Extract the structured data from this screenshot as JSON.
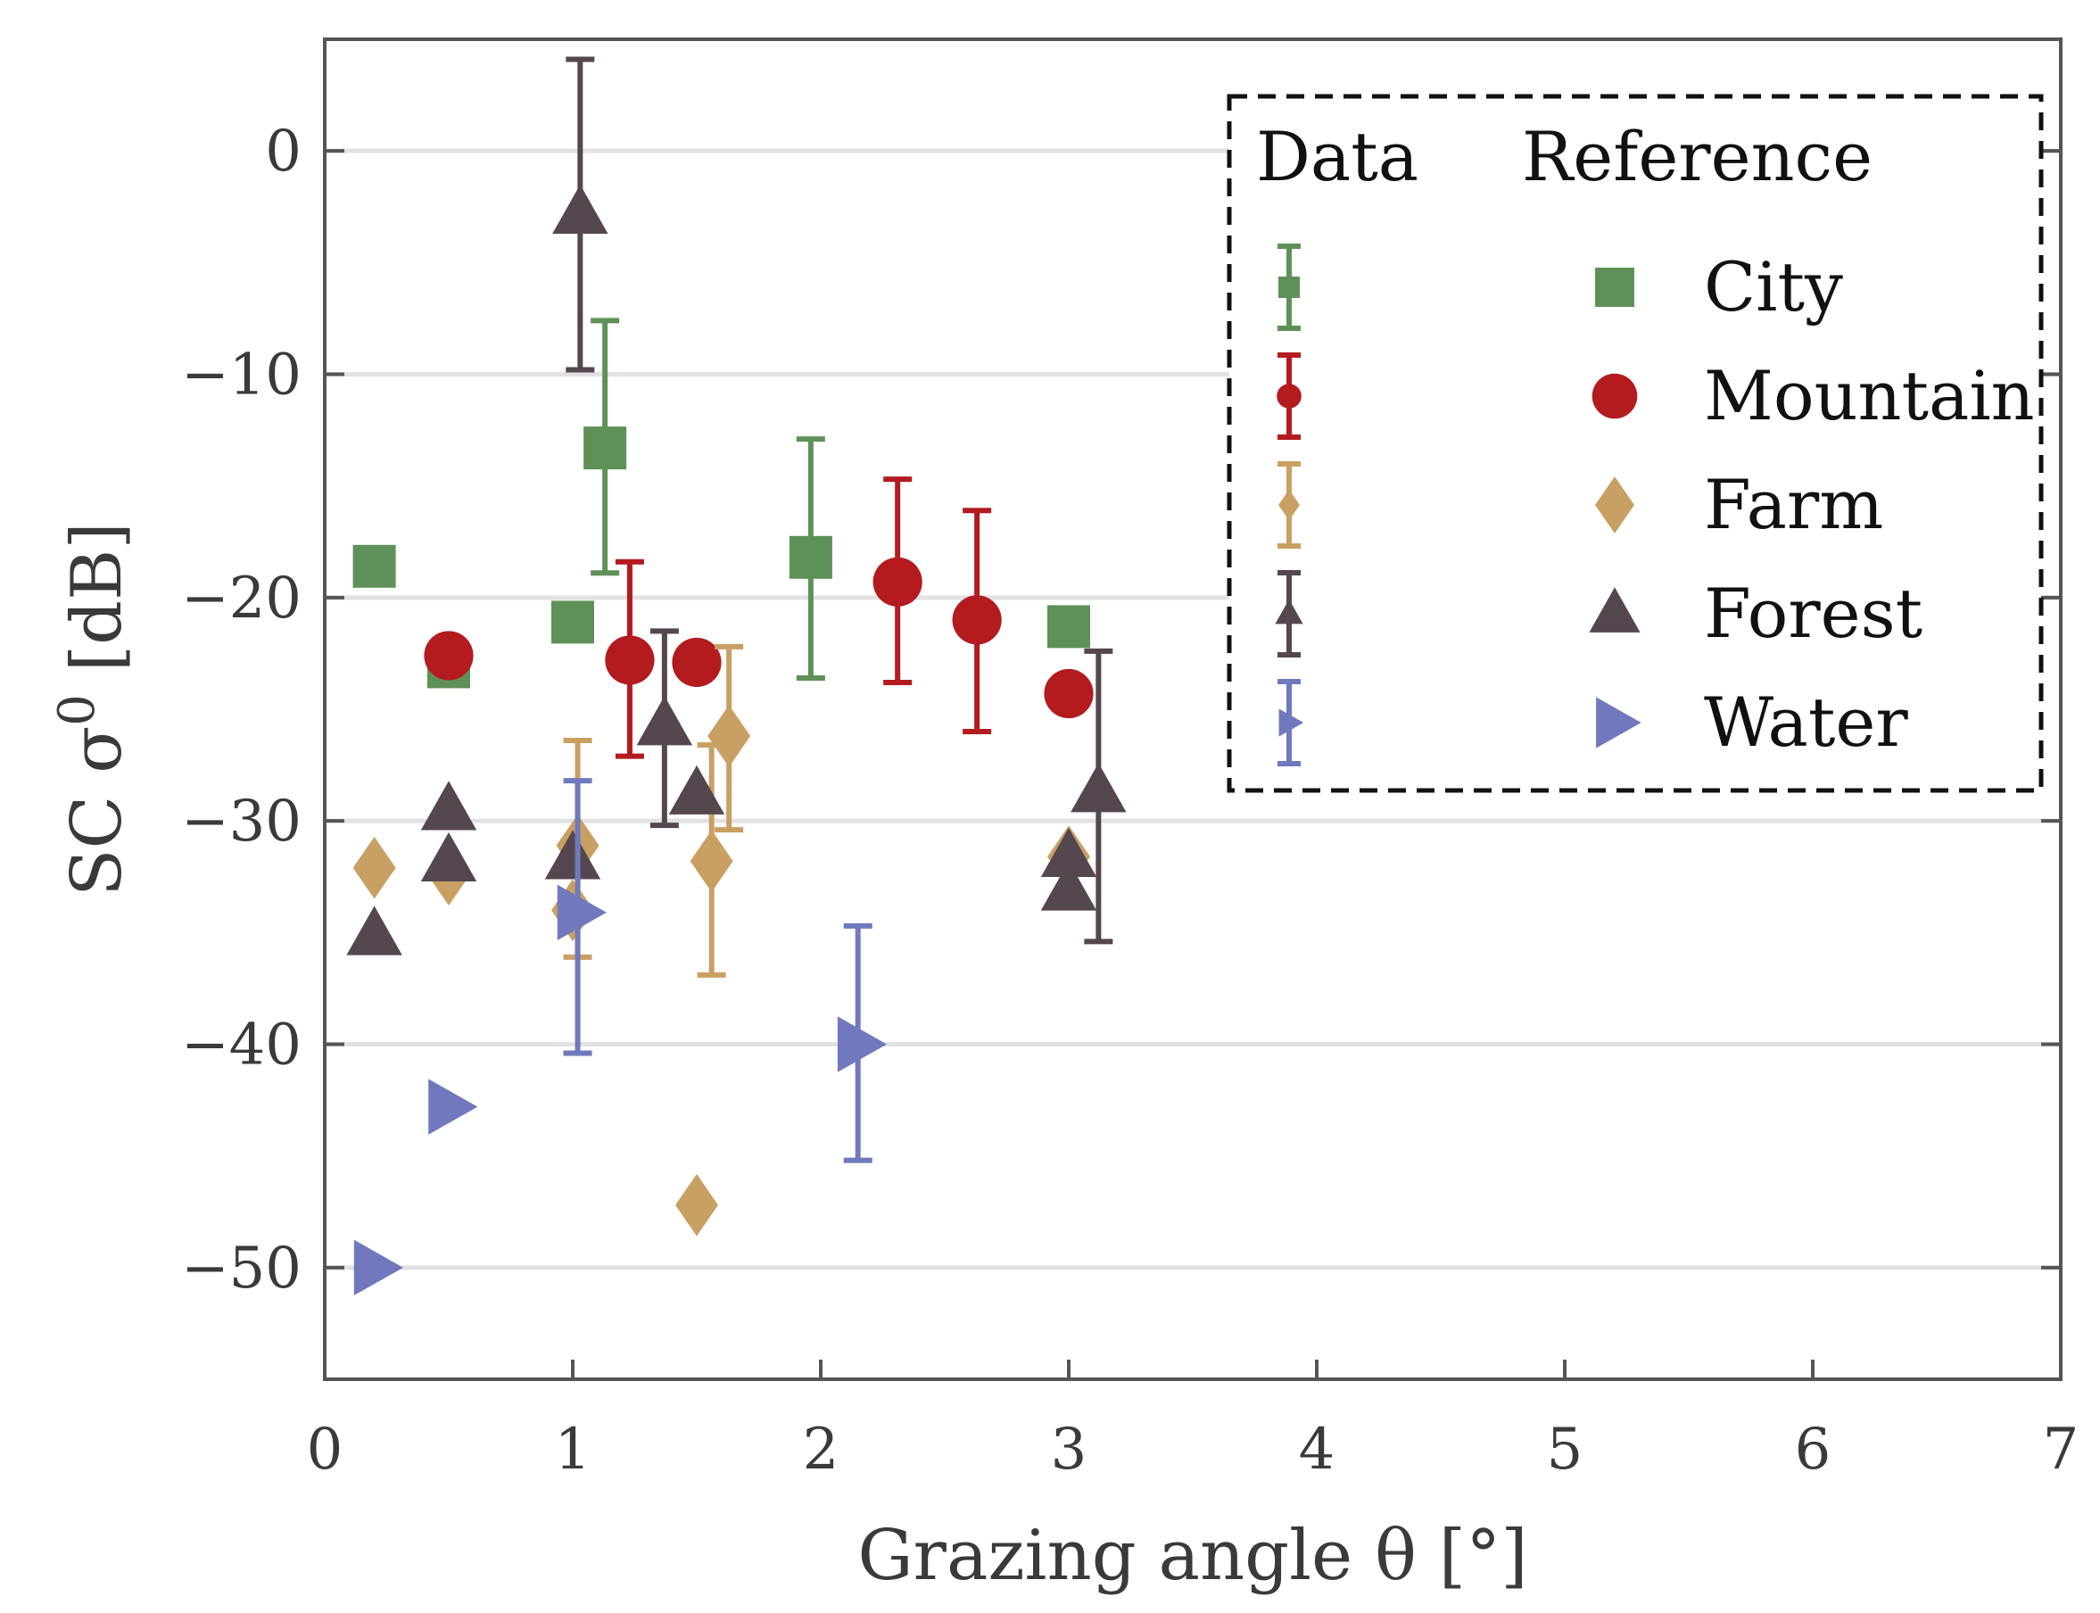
{
  "chart_data": {
    "type": "scatter",
    "xlabel": "Grazing angle θ [°]",
    "ylabel_prefix": "SC σ",
    "ylabel_superscript": "0",
    "ylabel_suffix": " [dB]",
    "xlim": [
      0,
      7
    ],
    "ylim": [
      -55,
      5
    ],
    "xticks": [
      0,
      1,
      2,
      3,
      4,
      5,
      6,
      7
    ],
    "yticks": [
      0,
      -10,
      -20,
      -30,
      -40,
      -50
    ],
    "ytick_labels": [
      "0",
      "−10",
      "−20",
      "−30",
      "−40",
      "−50"
    ],
    "grid": "horizontal",
    "legend": {
      "position": "top-right",
      "data_header": "Data",
      "reference_header": "Reference"
    },
    "series": [
      {
        "name": "City",
        "color": "#5e9158",
        "marker": "square",
        "data": [
          {
            "x": 1.13,
            "y": -13.3,
            "err_low": -18.9,
            "err_high": -7.6
          },
          {
            "x": 1.96,
            "y": -18.2,
            "err_low": -23.6,
            "err_high": -12.9
          }
        ],
        "reference": [
          {
            "x": 0.2,
            "y": -18.6
          },
          {
            "x": 0.5,
            "y": -23.1
          },
          {
            "x": 1.0,
            "y": -21.1
          },
          {
            "x": 3.0,
            "y": -21.3
          }
        ]
      },
      {
        "name": "Mountain",
        "color": "#b31b1f",
        "marker": "circle",
        "data": [
          {
            "x": 1.23,
            "y": -22.8,
            "err_low": -27.1,
            "err_high": -18.4
          },
          {
            "x": 2.31,
            "y": -19.3,
            "err_low": -23.8,
            "err_high": -14.7
          },
          {
            "x": 2.63,
            "y": -21.0,
            "err_low": -26.0,
            "err_high": -16.1
          }
        ],
        "reference": [
          {
            "x": 0.5,
            "y": -22.6
          },
          {
            "x": 1.5,
            "y": -22.9
          },
          {
            "x": 3.0,
            "y": -24.3
          }
        ]
      },
      {
        "name": "Farm",
        "color": "#c9a063",
        "marker": "diamond",
        "data": [
          {
            "x": 1.02,
            "y": -31.1,
            "err_low": -36.1,
            "err_high": -26.4
          },
          {
            "x": 1.56,
            "y": -31.8,
            "err_low": -36.9,
            "err_high": -26.6
          },
          {
            "x": 1.63,
            "y": -26.2,
            "err_low": -30.4,
            "err_high": -22.2
          }
        ],
        "reference": [
          {
            "x": 0.2,
            "y": -32.1
          },
          {
            "x": 0.5,
            "y": -32.4
          },
          {
            "x": 1.0,
            "y": -34.0
          },
          {
            "x": 1.5,
            "y": -47.2
          },
          {
            "x": 3.0,
            "y": -31.6
          }
        ]
      },
      {
        "name": "Forest",
        "color": "#54474f",
        "marker": "triangle",
        "data": [
          {
            "x": 1.03,
            "y": -2.8,
            "err_low": -9.8,
            "err_high": 4.1
          },
          {
            "x": 1.37,
            "y": -25.7,
            "err_low": -30.2,
            "err_high": -21.5
          },
          {
            "x": 3.12,
            "y": -28.7,
            "err_low": -35.4,
            "err_high": -22.4
          }
        ],
        "reference": [
          {
            "x": 0.2,
            "y": -35.1
          },
          {
            "x": 0.5,
            "y": -29.5
          },
          {
            "x": 0.5,
            "y": -31.8
          },
          {
            "x": 1.0,
            "y": -31.7
          },
          {
            "x": 1.5,
            "y": -28.8
          },
          {
            "x": 3.0,
            "y": -31.6
          },
          {
            "x": 3.0,
            "y": -33.1
          }
        ]
      },
      {
        "name": "Water",
        "color": "#7079bd",
        "marker": "triangle-right",
        "data": [
          {
            "x": 1.02,
            "y": -34.1,
            "err_low": -40.4,
            "err_high": -28.2
          },
          {
            "x": 2.15,
            "y": -40.0,
            "err_low": -45.2,
            "err_high": -34.7
          }
        ],
        "reference": [
          {
            "x": 0.2,
            "y": -50.0
          },
          {
            "x": 0.5,
            "y": -42.8
          }
        ]
      }
    ]
  }
}
